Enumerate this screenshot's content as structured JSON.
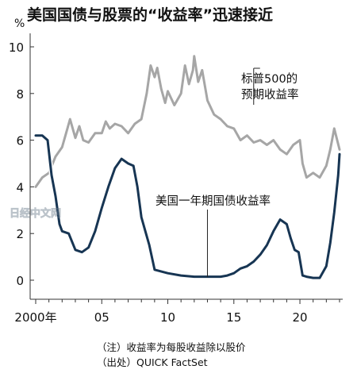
{
  "chart_data": {
    "type": "line",
    "title": "美国国债与股票的“收益率”迅速接近",
    "ylabel": "%",
    "ylim": [
      0,
      10
    ],
    "xlim": [
      2000,
      2023
    ],
    "y_ticks": [
      "0",
      "2",
      "4",
      "6",
      "8",
      "10"
    ],
    "x_ticks": [
      {
        "value": 2000,
        "label": "2000年"
      },
      {
        "value": 2005,
        "label": "05"
      },
      {
        "value": 2010,
        "label": "10"
      },
      {
        "value": 2015,
        "label": "15"
      },
      {
        "value": 2020,
        "label": "20"
      }
    ],
    "grid": false,
    "series": [
      {
        "name": "标普500的预期收益率",
        "label_lines": [
          "标普500的",
          "预期收益率"
        ],
        "color": "#a6a6a6",
        "x": [
          2000.0,
          2000.5,
          2001.0,
          2001.5,
          2002.0,
          2002.3,
          2002.6,
          2003.0,
          2003.3,
          2003.6,
          2004.0,
          2004.5,
          2005.0,
          2005.3,
          2005.6,
          2006.0,
          2006.5,
          2007.0,
          2007.5,
          2008.0,
          2008.4,
          2008.7,
          2009.0,
          2009.2,
          2009.5,
          2009.8,
          2010.0,
          2010.5,
          2011.0,
          2011.3,
          2011.6,
          2011.9,
          2012.0,
          2012.3,
          2012.6,
          2013.0,
          2013.5,
          2014.0,
          2014.5,
          2015.0,
          2015.5,
          2016.0,
          2016.5,
          2017.0,
          2017.5,
          2018.0,
          2018.5,
          2019.0,
          2019.5,
          2020.0,
          2020.2,
          2020.5,
          2021.0,
          2021.5,
          2022.0,
          2022.3,
          2022.6,
          2023.0
        ],
        "y": [
          4.0,
          4.4,
          4.6,
          5.3,
          5.7,
          6.3,
          6.9,
          6.1,
          6.6,
          6.0,
          5.9,
          6.3,
          6.3,
          6.8,
          6.5,
          6.7,
          6.6,
          6.3,
          6.7,
          6.9,
          8.0,
          9.2,
          8.7,
          9.1,
          8.2,
          7.6,
          8.1,
          7.5,
          8.0,
          9.2,
          8.4,
          9.0,
          9.6,
          8.5,
          9.0,
          7.7,
          7.1,
          6.9,
          6.6,
          6.5,
          6.0,
          6.2,
          5.9,
          6.0,
          5.8,
          6.0,
          5.6,
          5.4,
          5.8,
          6.0,
          5.0,
          4.4,
          4.6,
          4.4,
          4.9,
          5.6,
          6.5,
          5.6
        ]
      },
      {
        "name": "美国一年期国债收益率",
        "label_lines": [
          "美国一年期国债收益率"
        ],
        "color": "#173553",
        "x": [
          2000.0,
          2000.5,
          2000.9,
          2001.2,
          2001.5,
          2001.8,
          2002.0,
          2002.5,
          2003.0,
          2003.5,
          2004.0,
          2004.5,
          2005.0,
          2005.5,
          2006.0,
          2006.5,
          2007.0,
          2007.4,
          2007.7,
          2008.0,
          2008.3,
          2008.6,
          2009.0,
          2010.0,
          2011.0,
          2012.0,
          2013.0,
          2014.0,
          2014.5,
          2015.0,
          2015.5,
          2016.0,
          2016.5,
          2017.0,
          2017.5,
          2018.0,
          2018.5,
          2019.0,
          2019.3,
          2019.6,
          2019.9,
          2020.2,
          2020.5,
          2021.0,
          2021.5,
          2022.0,
          2022.3,
          2022.6,
          2022.9,
          2023.0
        ],
        "y": [
          6.2,
          6.2,
          6.0,
          4.5,
          3.6,
          2.4,
          2.1,
          2.0,
          1.3,
          1.2,
          1.4,
          2.1,
          3.1,
          4.0,
          4.8,
          5.2,
          5.0,
          4.9,
          4.0,
          2.7,
          2.1,
          1.5,
          0.45,
          0.3,
          0.2,
          0.15,
          0.15,
          0.15,
          0.2,
          0.3,
          0.5,
          0.6,
          0.8,
          1.1,
          1.5,
          2.1,
          2.6,
          2.4,
          1.8,
          1.3,
          1.2,
          0.2,
          0.15,
          0.1,
          0.1,
          0.6,
          1.6,
          2.9,
          4.5,
          5.4
        ]
      }
    ],
    "notes": [
      "（注）收益率为每股收益除以股价",
      "（出处）QUICK FactSet"
    ],
    "watermark": "日经中文网"
  }
}
